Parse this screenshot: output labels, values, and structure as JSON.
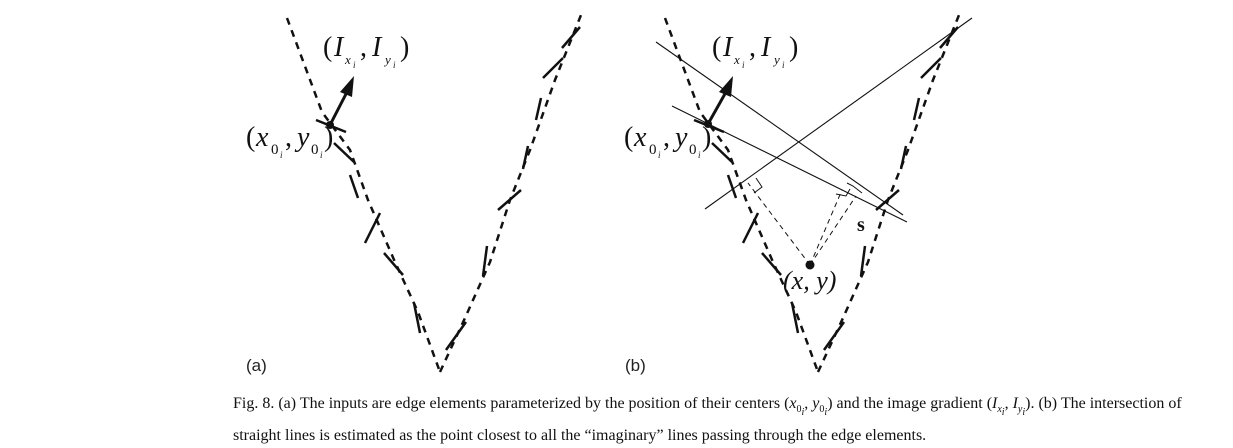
{
  "panels": [
    {
      "label": "(a)"
    },
    {
      "label": "(b)"
    }
  ],
  "math": {
    "gradient_I": "I",
    "gradient_sub_x": "x",
    "gradient_sub_y": "y",
    "sub_i": "i",
    "center_x": "x",
    "center_y": "y",
    "center_sub": "0",
    "paren_open": "(",
    "paren_close": ")",
    "comma": ",",
    "estimate": "(x, y)",
    "s": "s"
  },
  "caption": {
    "fig": "Fig.  8.",
    "part_a": "(a) The inputs are edge elements parameterized by the position of their centers",
    "centers_math": "(x0i, y0i)",
    "and_gradient": "and the image gradient",
    "gradient_math": "(Ixi, Iyi)",
    "part_b": ". (b) The intersection of straight lines is estimated as the point closest to all the “imaginary” lines passing through the edge elements."
  }
}
